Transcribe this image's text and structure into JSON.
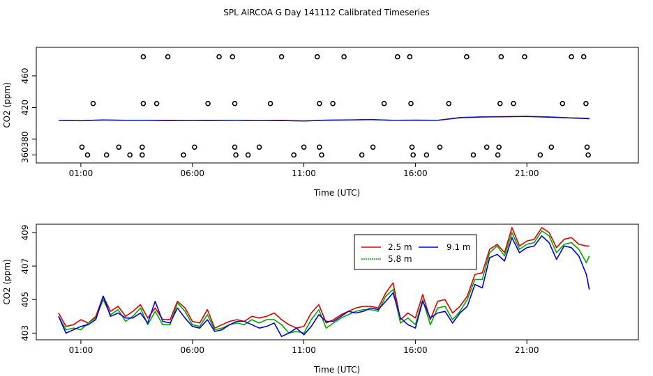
{
  "title": "SPL AIRCOA G  Day 141112  Calibrated Timeseries",
  "colors": {
    "series_2_5": "#dd0000",
    "series_5_8": "#00aa00",
    "series_9_1": "#0000dd",
    "axis": "#000000"
  },
  "chart_data": [
    {
      "type": "scatter",
      "xlabel": "Time (UTC)",
      "ylabel": "CO2 (ppm)",
      "xlim": [
        -1.0,
        26.0
      ],
      "ylim": [
        350,
        496
      ],
      "xticks": [
        1,
        6,
        11,
        16,
        21
      ],
      "xtick_labels": [
        "01:00",
        "06:00",
        "11:00",
        "16:00",
        "21:00"
      ],
      "yticks": [
        360,
        380,
        420,
        460
      ],
      "ytick_labels": [
        "360",
        "380",
        "420",
        "460"
      ],
      "outliers": {
        "name": "raw samples (open circles)",
        "x": [
          1.3,
          1.05,
          2.15,
          1.55,
          2.7,
          3.2,
          3.75,
          3.75,
          3.8,
          3.8,
          4.4,
          4.9,
          5.6,
          6.1,
          6.7,
          7.2,
          7.8,
          7.9,
          7.9,
          7.95,
          8.5,
          9.0,
          9.5,
          10.0,
          10.55,
          11.0,
          11.6,
          11.7,
          11.7,
          11.8,
          12.3,
          12.8,
          13.6,
          14.1,
          14.6,
          15.2,
          15.75,
          15.8,
          15.85,
          15.9,
          16.5,
          17.1,
          17.5,
          18.3,
          18.6,
          19.2,
          19.7,
          19.75,
          19.8,
          19.85,
          20.4,
          20.9,
          21.6,
          22.1,
          22.6,
          23.0,
          23.55,
          23.65,
          23.7,
          23.75
        ],
        "y": [
          360,
          370,
          360,
          425,
          370,
          360,
          360,
          370,
          425,
          484,
          425,
          484,
          360,
          370,
          425,
          484,
          484,
          425,
          370,
          360,
          360,
          370,
          425,
          484,
          360,
          370,
          484,
          425,
          370,
          360,
          425,
          484,
          360,
          370,
          425,
          484,
          484,
          425,
          370,
          360,
          360,
          370,
          425,
          484,
          360,
          370,
          360,
          370,
          425,
          484,
          425,
          484,
          360,
          370,
          425,
          484,
          484,
          425,
          370,
          360
        ]
      },
      "series": [
        {
          "name": "2.5 m",
          "color": "#dd0000",
          "x": [
            0.0,
            1.0,
            2.0,
            3.0,
            4.0,
            5.0,
            6.0,
            7.0,
            8.0,
            9.0,
            10.0,
            11.0,
            12.0,
            13.0,
            14.0,
            15.0,
            16.0,
            17.0,
            18.0,
            19.0,
            20.0,
            21.0,
            22.0,
            23.0,
            23.8
          ],
          "values": [
            404.0,
            403.5,
            404.5,
            404.0,
            404.0,
            403.8,
            403.6,
            403.9,
            404.0,
            403.6,
            403.8,
            403.2,
            404.2,
            404.5,
            405.0,
            404.0,
            404.2,
            404.0,
            407.5,
            408.4,
            408.6,
            409.0,
            408.2,
            407.0,
            406.5
          ]
        },
        {
          "name": "5.8 m",
          "color": "#00aa00",
          "x": [
            0.0,
            1.0,
            2.0,
            3.0,
            4.0,
            5.0,
            6.0,
            7.0,
            8.0,
            9.0,
            10.0,
            11.0,
            12.0,
            13.0,
            14.0,
            15.0,
            16.0,
            17.0,
            18.0,
            19.0,
            20.0,
            21.0,
            22.0,
            23.0,
            23.8
          ],
          "values": [
            403.8,
            403.3,
            404.3,
            403.8,
            403.9,
            403.6,
            403.4,
            403.7,
            403.8,
            403.4,
            403.6,
            403.0,
            404.0,
            404.3,
            404.8,
            403.8,
            404.0,
            403.8,
            407.2,
            408.2,
            408.4,
            408.8,
            408.0,
            406.8,
            406.2
          ]
        },
        {
          "name": "9.1 m",
          "color": "#0000dd",
          "x": [
            0.0,
            1.0,
            2.0,
            3.0,
            4.0,
            5.0,
            6.0,
            7.0,
            8.0,
            9.0,
            10.0,
            11.0,
            12.0,
            13.0,
            14.0,
            15.0,
            16.0,
            17.0,
            18.0,
            19.0,
            20.0,
            21.0,
            22.0,
            23.0,
            23.8
          ],
          "values": [
            403.7,
            403.2,
            404.2,
            403.7,
            403.8,
            403.5,
            403.3,
            403.6,
            403.7,
            403.3,
            403.5,
            402.9,
            403.9,
            404.2,
            404.7,
            403.7,
            403.9,
            403.7,
            407.0,
            408.0,
            408.3,
            408.6,
            407.8,
            406.6,
            405.8
          ]
        }
      ]
    },
    {
      "type": "line",
      "xlabel": "Time (UTC)",
      "ylabel": "CO2 (ppm)",
      "xlim": [
        -1.0,
        26.0
      ],
      "ylim": [
        402.6,
        409.5
      ],
      "xticks": [
        1,
        6,
        11,
        16,
        21
      ],
      "xtick_labels": [
        "01:00",
        "06:00",
        "11:00",
        "16:00",
        "21:00"
      ],
      "yticks": [
        403,
        405,
        407,
        409
      ],
      "ytick_labels": [
        "403",
        "405",
        "407",
        "409"
      ],
      "legend_position": "top-right",
      "series": [
        {
          "name": "2.5 m",
          "color": "#dd0000",
          "x": [
            0.0,
            0.33,
            0.67,
            1.0,
            1.33,
            1.67,
            2.0,
            2.33,
            2.67,
            3.0,
            3.33,
            3.67,
            4.0,
            4.33,
            4.67,
            5.0,
            5.33,
            5.67,
            6.0,
            6.33,
            6.67,
            7.0,
            7.33,
            7.67,
            8.0,
            8.33,
            8.67,
            9.0,
            9.33,
            9.67,
            10.0,
            10.33,
            10.67,
            11.0,
            11.33,
            11.67,
            12.0,
            12.33,
            12.67,
            13.0,
            13.33,
            13.67,
            14.0,
            14.33,
            14.67,
            15.0,
            15.33,
            15.67,
            16.0,
            16.33,
            16.67,
            17.0,
            17.33,
            17.67,
            18.0,
            18.33,
            18.67,
            19.0,
            19.33,
            19.67,
            20.0,
            20.33,
            20.67,
            21.0,
            21.33,
            21.67,
            22.0,
            22.33,
            22.67,
            23.0,
            23.33,
            23.67
          ],
          "values": [
            404.2,
            403.4,
            403.5,
            403.8,
            403.6,
            404.0,
            405.2,
            404.3,
            404.6,
            404.0,
            404.3,
            404.7,
            403.9,
            404.5,
            403.8,
            403.8,
            404.9,
            404.5,
            403.7,
            403.6,
            404.4,
            403.3,
            403.5,
            403.7,
            403.8,
            403.7,
            404.0,
            403.9,
            404.0,
            404.2,
            403.8,
            403.5,
            403.3,
            403.4,
            404.2,
            404.7,
            403.6,
            403.8,
            404.1,
            404.3,
            404.5,
            404.6,
            404.6,
            404.5,
            405.4,
            406.0,
            403.8,
            404.2,
            403.9,
            405.3,
            403.8,
            404.9,
            405.0,
            404.2,
            404.6,
            405.2,
            406.5,
            406.6,
            408.0,
            408.3,
            407.8,
            409.3,
            408.2,
            408.5,
            408.6,
            409.3,
            409.0,
            408.1,
            408.6,
            408.7,
            408.3,
            408.2
          ],
          "x_end": [
            23.8
          ],
          "values_end": [
            408.2
          ]
        },
        {
          "name": "5.8 m",
          "color": "#00aa00",
          "x": [
            0.0,
            0.33,
            0.67,
            1.0,
            1.33,
            1.67,
            2.0,
            2.33,
            2.67,
            3.0,
            3.33,
            3.67,
            4.0,
            4.33,
            4.67,
            5.0,
            5.33,
            5.67,
            6.0,
            6.33,
            6.67,
            7.0,
            7.33,
            7.67,
            8.0,
            8.33,
            8.67,
            9.0,
            9.33,
            9.67,
            10.0,
            10.33,
            10.67,
            11.0,
            11.33,
            11.67,
            12.0,
            12.33,
            12.67,
            13.0,
            13.33,
            13.67,
            14.0,
            14.33,
            14.67,
            15.0,
            15.33,
            15.67,
            16.0,
            16.33,
            16.67,
            17.0,
            17.33,
            17.67,
            18.0,
            18.33,
            18.67,
            19.0,
            19.33,
            19.67,
            20.0,
            20.33,
            20.67,
            21.0,
            21.33,
            21.67,
            22.0,
            22.33,
            22.67,
            23.0,
            23.33,
            23.67
          ],
          "values": [
            404.0,
            403.2,
            403.3,
            403.2,
            403.6,
            403.9,
            405.0,
            404.1,
            404.4,
            403.7,
            404.0,
            404.5,
            403.5,
            404.3,
            403.5,
            403.5,
            404.8,
            404.3,
            403.5,
            403.4,
            404.1,
            403.2,
            403.3,
            403.5,
            403.6,
            403.5,
            403.8,
            403.6,
            403.8,
            403.8,
            403.5,
            403.0,
            403.1,
            403.0,
            403.8,
            404.4,
            403.3,
            403.6,
            403.9,
            404.1,
            404.3,
            404.4,
            404.4,
            404.3,
            405.2,
            405.6,
            403.6,
            403.9,
            403.5,
            405.0,
            403.5,
            404.5,
            404.6,
            403.8,
            404.3,
            405.0,
            406.2,
            406.2,
            407.8,
            408.2,
            407.6,
            409.0,
            408.0,
            408.3,
            408.4,
            409.1,
            408.8,
            407.8,
            408.3,
            408.4,
            408.0,
            407.2
          ],
          "x_end": [
            23.8
          ],
          "values_end": [
            407.6
          ]
        },
        {
          "name": "9.1 m",
          "color": "#0000dd",
          "x": [
            0.0,
            0.33,
            0.67,
            1.0,
            1.33,
            1.67,
            2.0,
            2.33,
            2.67,
            3.0,
            3.33,
            3.67,
            4.0,
            4.33,
            4.67,
            5.0,
            5.33,
            5.67,
            6.0,
            6.33,
            6.67,
            7.0,
            7.33,
            7.67,
            8.0,
            8.33,
            8.67,
            9.0,
            9.33,
            9.67,
            10.0,
            10.33,
            10.67,
            11.0,
            11.33,
            11.67,
            12.0,
            12.33,
            12.67,
            13.0,
            13.33,
            13.67,
            14.0,
            14.33,
            14.67,
            15.0,
            15.33,
            15.67,
            16.0,
            16.33,
            16.67,
            17.0,
            17.33,
            17.67,
            18.0,
            18.33,
            18.67,
            19.0,
            19.33,
            19.67,
            20.0,
            20.33,
            20.67,
            21.0,
            21.33,
            21.67,
            22.0,
            22.33,
            22.67,
            23.0,
            23.33,
            23.67
          ],
          "values": [
            404.0,
            403.0,
            403.2,
            403.4,
            403.5,
            403.8,
            405.2,
            404.0,
            404.2,
            403.9,
            403.9,
            404.2,
            403.6,
            404.9,
            403.7,
            403.6,
            404.5,
            403.9,
            403.4,
            403.3,
            403.8,
            403.1,
            403.2,
            403.5,
            403.7,
            403.7,
            403.5,
            403.3,
            403.4,
            403.6,
            402.8,
            403.0,
            403.3,
            402.9,
            403.4,
            404.1,
            403.7,
            403.7,
            404.0,
            404.3,
            404.2,
            404.3,
            404.5,
            404.4,
            404.9,
            405.4,
            403.9,
            403.5,
            403.3,
            404.9,
            403.9,
            404.2,
            404.3,
            403.6,
            404.2,
            404.6,
            405.9,
            405.7,
            407.5,
            407.7,
            407.3,
            408.7,
            407.8,
            408.1,
            408.2,
            408.8,
            408.4,
            407.4,
            408.2,
            408.1,
            407.6,
            406.5
          ],
          "x_end": [
            23.8
          ],
          "values_end": [
            405.6
          ]
        }
      ]
    }
  ]
}
